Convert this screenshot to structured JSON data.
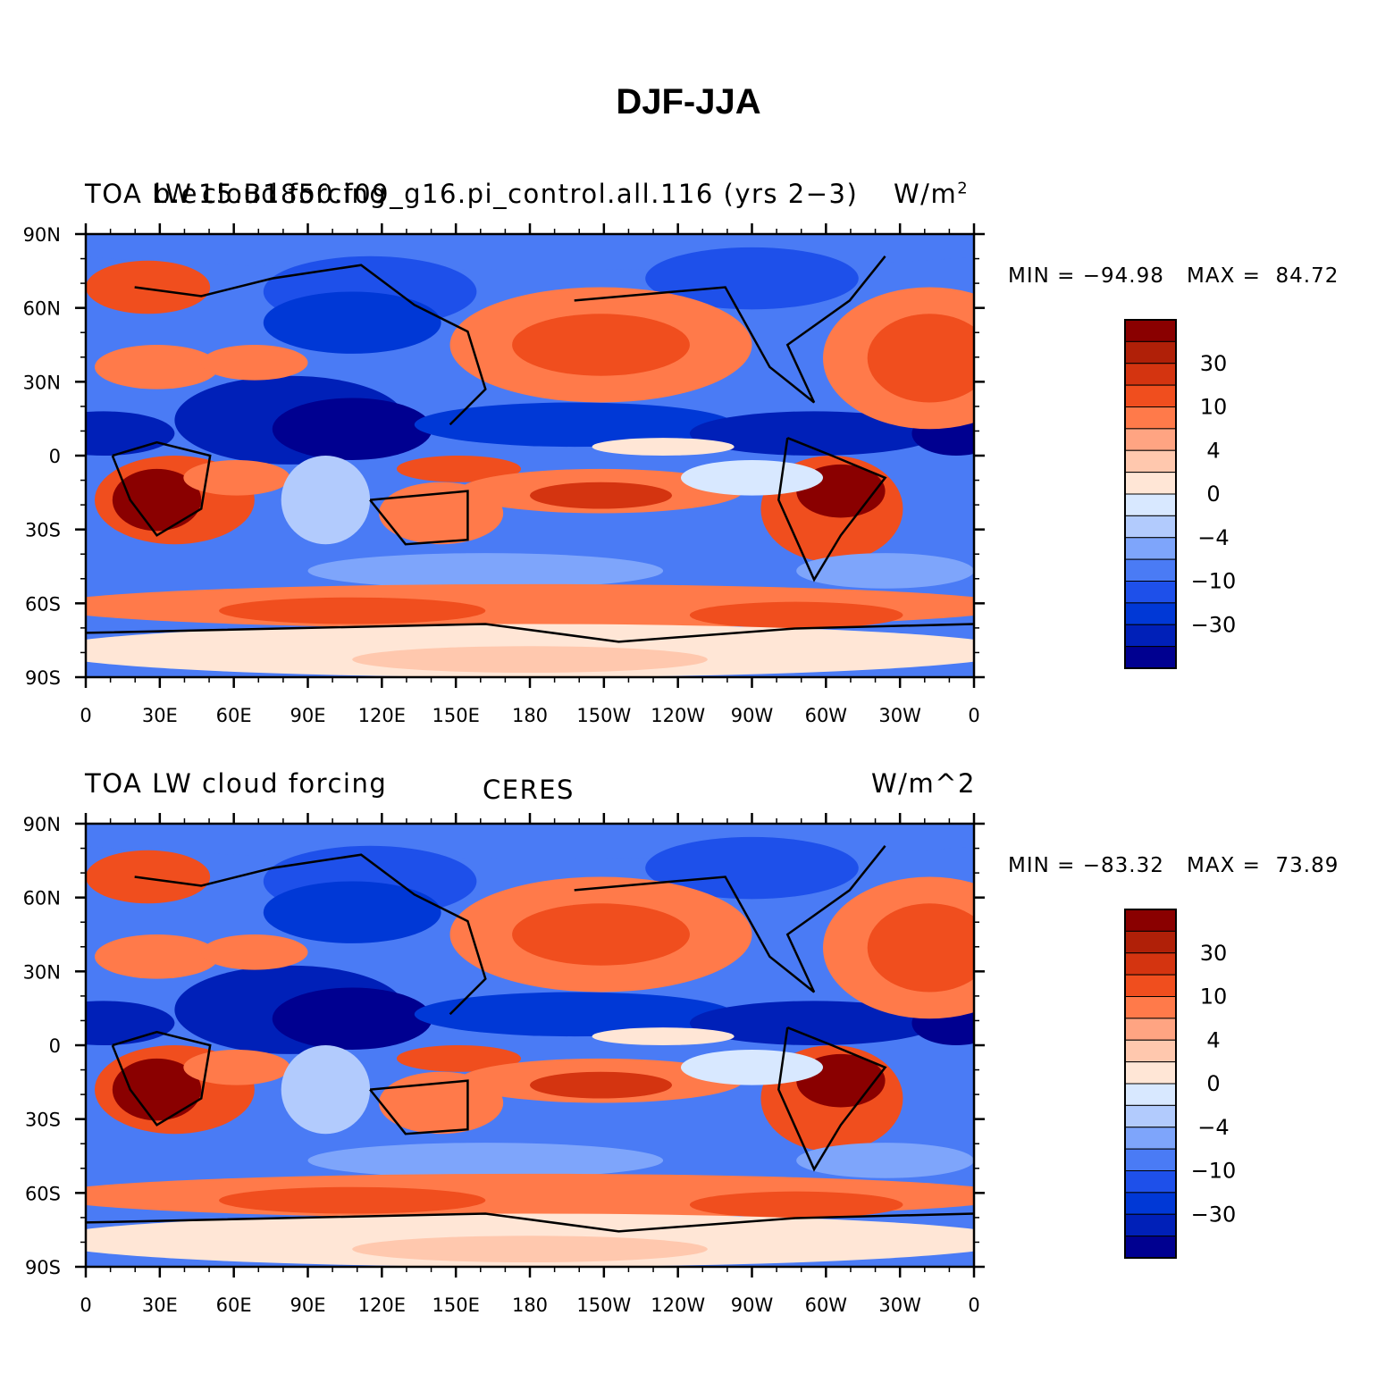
{
  "title": "DJF-JJA",
  "colorbar": {
    "colors": [
      "#000090",
      "#0020b8",
      "#0038d6",
      "#1e50ea",
      "#4a7bf5",
      "#7ea5fb",
      "#b2cbfd",
      "#d8e8ff",
      "#ffe6d6",
      "#ffc8ae",
      "#ffa482",
      "#ff7a4a",
      "#f04e1e",
      "#d43410",
      "#b02008",
      "#8a0000"
    ],
    "labels": [
      "30",
      "10",
      "4",
      "0",
      "−4",
      "−10",
      "−30"
    ]
  },
  "axes": {
    "lat_labels": [
      "90N",
      "60N",
      "30N",
      "0",
      "30S",
      "60S",
      "90S"
    ],
    "lon_labels": [
      "0",
      "30E",
      "60E",
      "90E",
      "120E",
      "150E",
      "180",
      "150W",
      "120W",
      "90W",
      "60W",
      "30W",
      "0"
    ]
  },
  "panels": [
    {
      "left_label": "TOA LW cloud forcing",
      "overlap_label": "b.e15.B1850.f09_g16.pi_control.all.116 (yrs 2−3)",
      "center_label": "",
      "units_main": "W/m",
      "units_sup": "2",
      "min_label": "MIN = −94.98",
      "max_label": "MAX =  84.72",
      "field_min": -94.98,
      "field_max": 84.72
    },
    {
      "left_label": "TOA LW cloud forcing",
      "overlap_label": "",
      "center_label": "CERES",
      "units_main": "W/m^2",
      "units_sup": "",
      "min_label": "MIN = −83.32",
      "max_label": "MAX =  73.89",
      "field_min": -83.32,
      "field_max": 73.89
    }
  ]
}
